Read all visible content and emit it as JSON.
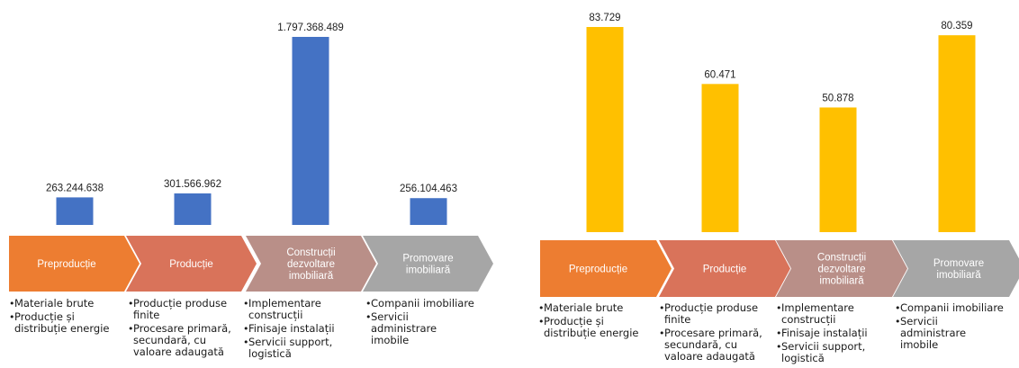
{
  "chart_data": [
    {
      "type": "bar",
      "categories": [
        "Preproducție",
        "Producție",
        "Construcții dezvoltare imobiliară",
        "Promovare imobiliară"
      ],
      "values": [
        263244638,
        301566962,
        1797368489,
        256104463
      ],
      "value_labels": [
        "263.244.638",
        "301.566.962",
        "1.797.368.489",
        "256.104.463"
      ],
      "color": "#4472C4",
      "ylim": [
        0,
        1797368489
      ]
    },
    {
      "type": "bar",
      "categories": [
        "Preproducție",
        "Producție",
        "Construcții dezvoltare imobiliară",
        "Promovare imobiliară"
      ],
      "values": [
        83729,
        60471,
        50878,
        80359
      ],
      "value_labels": [
        "83.729",
        "60.471",
        "50.878",
        "80.359"
      ],
      "color": "#FFC000",
      "ylim": [
        0,
        83729
      ]
    }
  ],
  "stages": [
    {
      "label_lines": [
        "Preproducție"
      ],
      "color": "#ED7D31"
    },
    {
      "label_lines": [
        "Producție"
      ],
      "color": "#D9735A"
    },
    {
      "label_lines": [
        "Construcții",
        "dezvoltare",
        "imobiliară"
      ],
      "color": "#B98F88"
    },
    {
      "label_lines": [
        "Promovare",
        "imobiliară"
      ],
      "color": "#A6A6A6"
    }
  ],
  "bullets": [
    [
      "Materiale brute",
      "Producție și distribuție energie"
    ],
    [
      "Producție produse finite",
      "Procesare primară, secundară, cu valoare adaugată"
    ],
    [
      "Implementare construcții",
      "Finisaje instalații",
      "Servicii support, logistică"
    ],
    [
      "Companii imobiliare",
      "Servicii administrare imobile"
    ]
  ]
}
